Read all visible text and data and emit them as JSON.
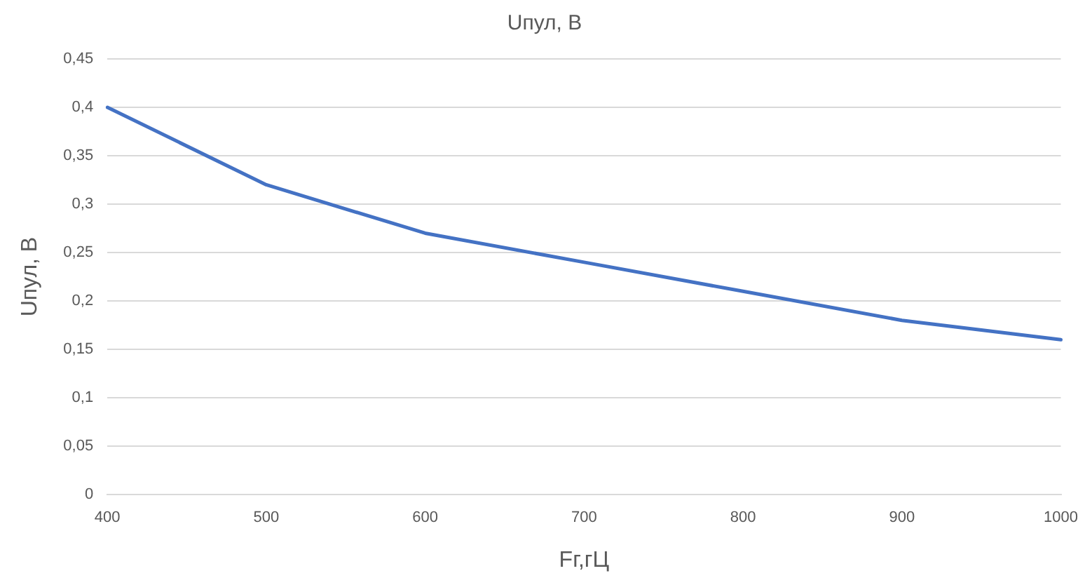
{
  "chart_data": {
    "type": "line",
    "title": "Uпул, В",
    "xlabel": "Fг,гЦ",
    "ylabel": "Uпул, В",
    "categories": [
      "400",
      "500",
      "600",
      "700",
      "800",
      "900",
      "1000"
    ],
    "series": [
      {
        "color": "#4472c4",
        "values": [
          0.4,
          0.32,
          0.27,
          0.24,
          0.21,
          0.18,
          0.16
        ]
      }
    ],
    "ylim": [
      0,
      0.45
    ],
    "yticks": [
      0,
      {
        "value": 0.05,
        "label": "0,05"
      },
      {
        "value": 0.1,
        "label": "0,1"
      },
      {
        "value": 0.15,
        "label": "0,15"
      },
      {
        "value": 0.2,
        "label": "0,2"
      },
      {
        "value": 0.25,
        "label": "0,25"
      },
      {
        "value": 0.3,
        "label": "0,3"
      },
      {
        "value": 0.35,
        "label": "0,35"
      },
      {
        "value": 0.4,
        "label": "0,4"
      },
      {
        "value": 0.45,
        "label": "0,45"
      }
    ],
    "grid": "y",
    "legend": false,
    "marker": "none",
    "line_style": "solid"
  }
}
